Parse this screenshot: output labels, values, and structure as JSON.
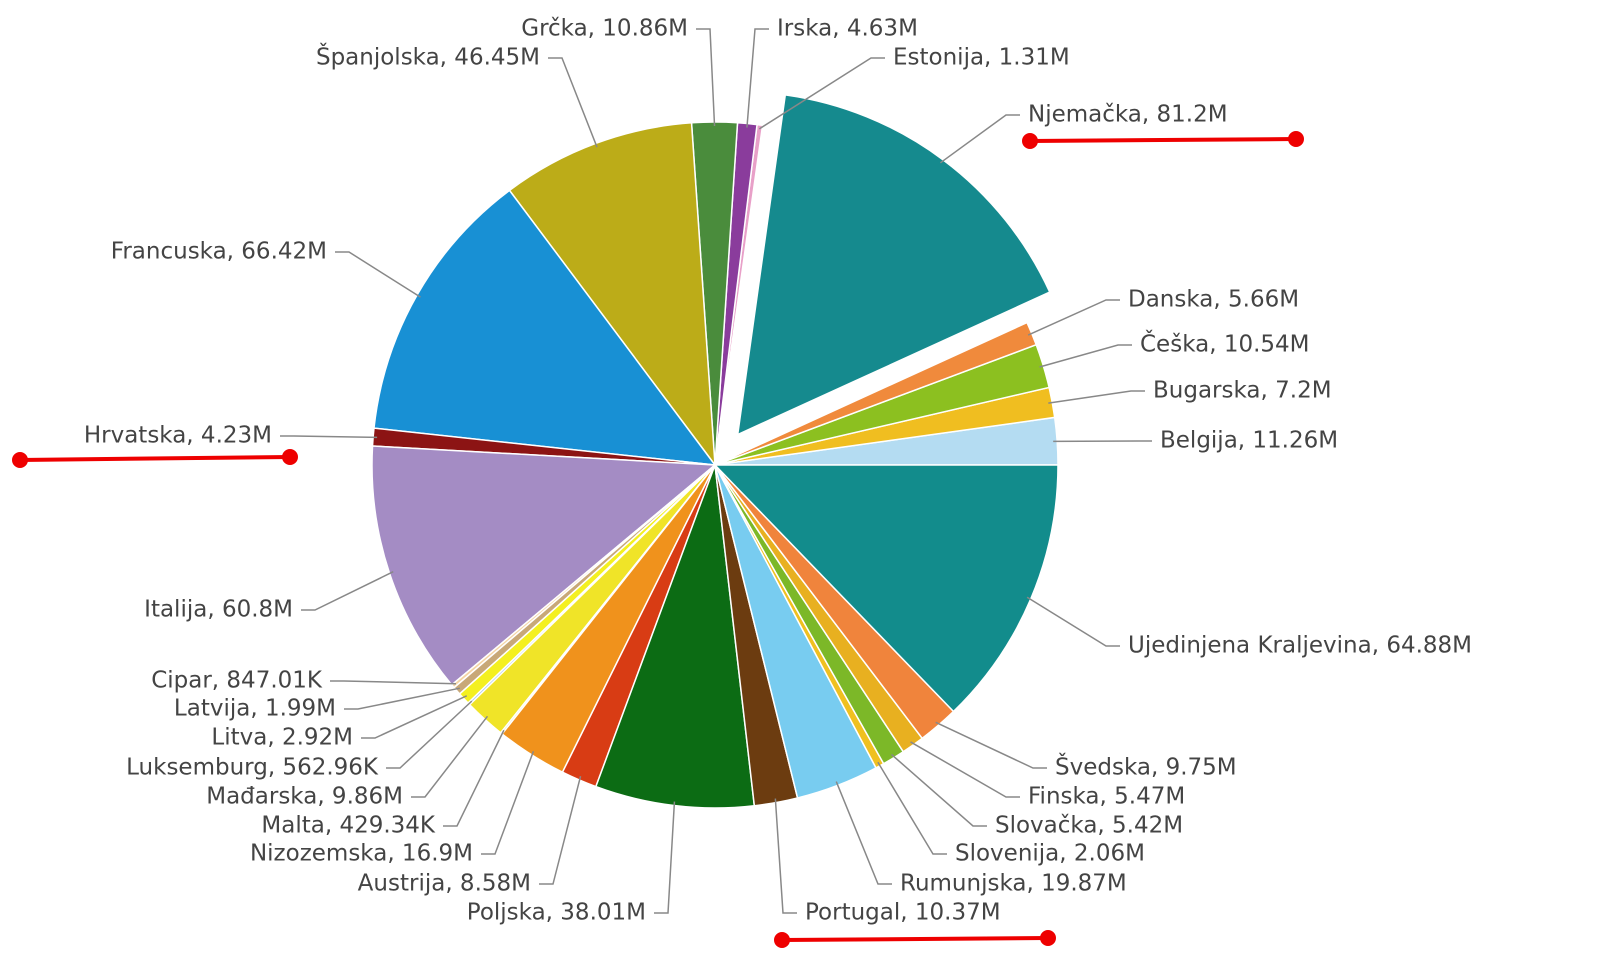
{
  "chart_data": {
    "type": "pie",
    "values": [
      11.26,
      7.2,
      10.54,
      5.66,
      81.2,
      1.31,
      4.63,
      10.86,
      46.45,
      66.42,
      4.23,
      60.8,
      0.84701,
      1.99,
      2.92,
      0.56296,
      9.86,
      0.42934,
      16.9,
      8.58,
      38.01,
      10.37,
      19.87,
      2.06,
      5.42,
      5.47,
      9.75,
      64.88
    ],
    "value_labels": [
      "Belgija, 11.26M",
      "Bugarska, 7.2M",
      "Češka, 10.54M",
      "Danska, 5.66M",
      "Njemačka, 81.2M",
      "Estonija, 1.31M",
      "Irska, 4.63M",
      "Grčka, 10.86M",
      "Španjolska, 46.45M",
      "Francuska, 66.42M",
      "Hrvatska, 4.23M",
      "Italija, 60.8M",
      "Cipar, 847.01K",
      "Latvija, 1.99M",
      "Litva, 2.92M",
      "Luksemburg, 562.96K",
      "Mađarska, 9.86M",
      "Malta, 429.34K",
      "Nizozemska, 16.9M",
      "Austrija, 8.58M",
      "Poljska, 38.01M",
      "Portugal, 10.37M",
      "Rumunjska, 19.87M",
      "Slovenija, 2.06M",
      "Slovačka, 5.42M",
      "Finska, 5.47M",
      "Švedska, 9.75M",
      "Ujedinjena Kraljevina, 64.88M"
    ],
    "colors": [
      "#b4dcf2",
      "#f0be20",
      "#8cc020",
      "#f08a3c",
      "#158a8e",
      "#e8a0c8",
      "#8a3c9c",
      "#4a8c3c",
      "#bcac18",
      "#1890d4",
      "#8c1414",
      "#a48cc4",
      "#f4d4a4",
      "#c8a878",
      "#f4f020",
      "#a8c4e4",
      "#f0e428",
      "#e8d070",
      "#f0921c",
      "#d83c14",
      "#0c6c14",
      "#6c3c10",
      "#78ccf0",
      "#f0c020",
      "#7cb828",
      "#e8b020",
      "#f0843c",
      "#128c8c"
    ],
    "explode": [
      4
    ]
  }
}
